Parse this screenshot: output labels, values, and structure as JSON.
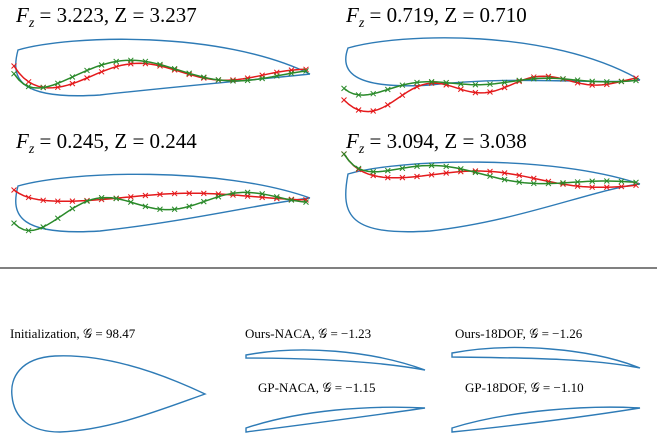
{
  "panels": [
    {
      "symbol": "F",
      "sub": "z",
      "rest": " = 3.223, Z = 3.237"
    },
    {
      "symbol": "F",
      "sub": "z",
      "rest": " = 0.719, Z = 0.710"
    },
    {
      "symbol": "F",
      "sub": "z",
      "rest": " = 0.245, Z = 0.244"
    },
    {
      "symbol": "F",
      "sub": "z",
      "rest": " = 3.094, Z = 3.038"
    }
  ],
  "results": [
    {
      "label": "Initialization, 𝒢 = 98.47"
    },
    {
      "label": "Ours-NACA, 𝒢 = −1.23"
    },
    {
      "label": "Ours-18DOF, 𝒢 = −1.26"
    },
    {
      "label": "GP-NACA, 𝒢 = −1.15"
    },
    {
      "label": "GP-18DOF, 𝒢 = −1.10"
    }
  ]
}
